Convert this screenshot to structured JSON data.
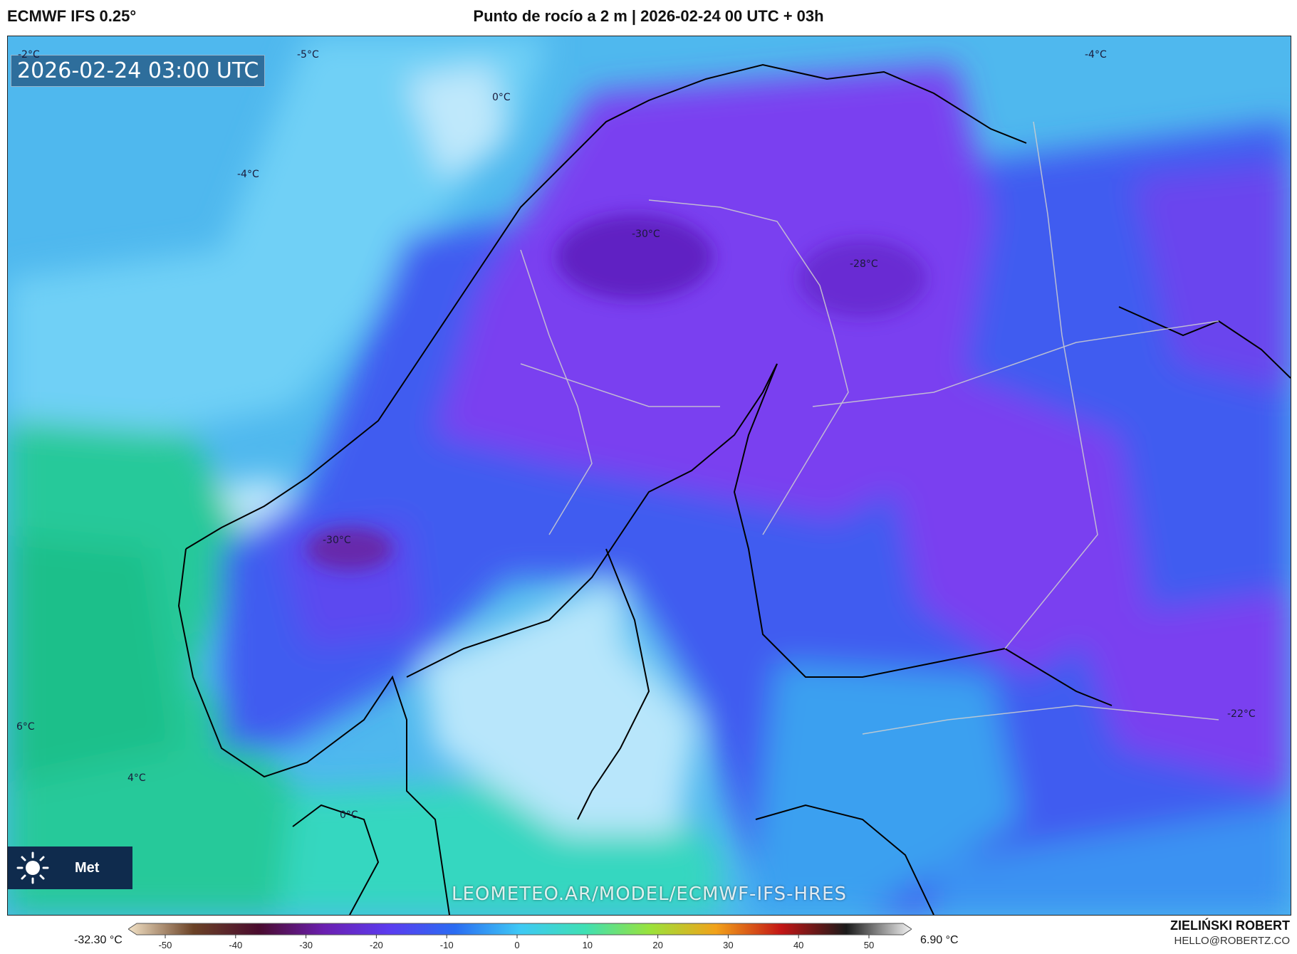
{
  "header": {
    "model": "ECMWF IFS 0.25°",
    "title": "Punto de rocío a 2 m | 2026-02-24 00 UTC + 03h"
  },
  "map": {
    "valid_time": "2026-02-24 03:00 UTC",
    "watermark": "LEOMETEO.AR/MODEL/ECMWF-IFS-HRES",
    "logo_text": "Met",
    "contour_labels": [
      "-2°C",
      "-5°C",
      "0°C",
      "-4°C",
      "-4°C",
      "-30°C",
      "-28°C",
      "-30°C",
      "6°C",
      "4°C",
      "0°C",
      "-22°C"
    ]
  },
  "colorbar": {
    "min_label": "-32.30 °C",
    "max_label": "6.90 °C",
    "ticks": [
      "-50",
      "-40",
      "-30",
      "-20",
      "-10",
      "0",
      "10",
      "20",
      "30",
      "40",
      "50"
    ],
    "stops": [
      "#f3e3c7",
      "#6b4226",
      "#4a0b2e",
      "#6b1fb0",
      "#5b3cf0",
      "#2a6cf2",
      "#3ec9f5",
      "#3fe0b3",
      "#9be23a",
      "#f2a21a",
      "#c31616",
      "#1a1a1a",
      "#f4f4f4"
    ]
  },
  "footer": {
    "author": "ZIELIŃSKI ROBERT",
    "email": "HELLO@ROBERTZ.CO"
  },
  "colors": {
    "ocean_green": "#22c4a0",
    "ocean_cyan": "#4fc3f0",
    "light_blue": "#a8dcf5",
    "land_blue": "#3f5cf0",
    "land_purple": "#7a3ff0"
  }
}
